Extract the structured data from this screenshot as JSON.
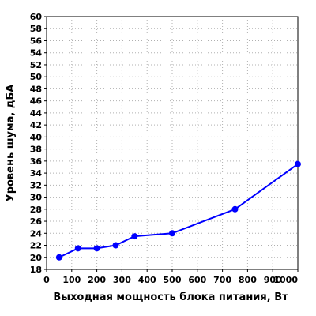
{
  "chart_data": {
    "type": "line",
    "title": "",
    "xlabel": "Выходная мощность блока питания, Вт",
    "ylabel": "Уровень шума, дБА",
    "xlim": [
      0,
      1000
    ],
    "ylim": [
      18,
      60
    ],
    "xticks": [
      0,
      100,
      200,
      300,
      400,
      500,
      600,
      700,
      800,
      900,
      1000
    ],
    "yticks": [
      18,
      20,
      22,
      24,
      26,
      28,
      30,
      32,
      34,
      36,
      38,
      40,
      42,
      44,
      46,
      48,
      50,
      52,
      54,
      56,
      58,
      60
    ],
    "grid": true,
    "series": [
      {
        "color": "#0000ff",
        "x": [
          50,
          125,
          200,
          275,
          350,
          500,
          750,
          1000
        ],
        "y": [
          20.0,
          21.5,
          21.5,
          22.0,
          23.5,
          24.0,
          28.0,
          35.5
        ]
      }
    ]
  }
}
